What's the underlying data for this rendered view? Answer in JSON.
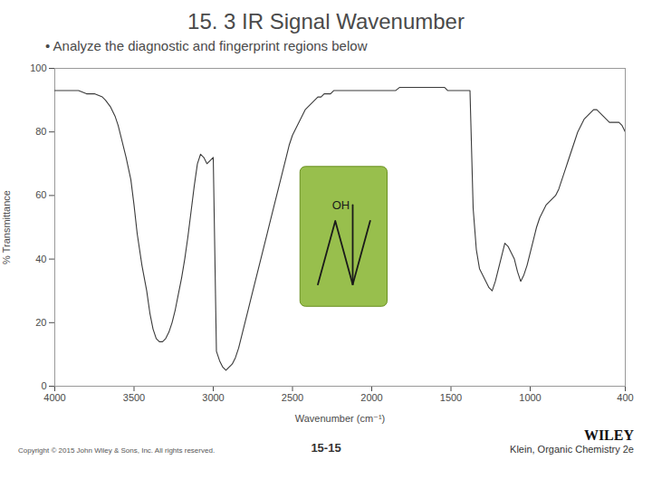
{
  "chart_data": {
    "type": "line",
    "title": "15. 3 IR Signal Wavenumber",
    "subtitle": "• Analyze the diagnostic and fingerprint regions below",
    "xlabel": "Wavenumber (cm⁻¹)",
    "ylabel": "% Transmittance",
    "color": "#3a3a3a",
    "grid": false,
    "annotations": [
      "OH"
    ],
    "footer": [
      "Copyright © 2015 John Wiley & Sons, Inc. All rights reserved.",
      "15-15",
      "WILEY",
      "Klein, Organic Chemistry 2e"
    ],
    "xlim": [
      4000,
      400
    ],
    "ylim": [
      0,
      100
    ],
    "xticks": [
      4000,
      3500,
      3000,
      2500,
      2000,
      1500,
      1000,
      400
    ],
    "yticks": [
      0,
      20,
      40,
      60,
      80,
      100
    ],
    "x": [
      4000,
      3950,
      3900,
      3850,
      3800,
      3750,
      3700,
      3680,
      3650,
      3620,
      3600,
      3580,
      3550,
      3520,
      3500,
      3480,
      3450,
      3420,
      3400,
      3380,
      3360,
      3340,
      3320,
      3300,
      3280,
      3260,
      3240,
      3220,
      3200,
      3180,
      3160,
      3140,
      3120,
      3100,
      3080,
      3060,
      3040,
      3020,
      3000,
      2980,
      2960,
      2940,
      2920,
      2900,
      2880,
      2860,
      2840,
      2820,
      2800,
      2780,
      2760,
      2740,
      2720,
      2700,
      2680,
      2660,
      2640,
      2620,
      2600,
      2580,
      2560,
      2540,
      2520,
      2500,
      2480,
      2460,
      2440,
      2420,
      2400,
      2380,
      2360,
      2340,
      2320,
      2300,
      2280,
      2260,
      2240,
      2220,
      2200,
      2150,
      2100,
      2050,
      2000,
      1975,
      1950,
      1925,
      1900,
      1875,
      1850,
      1825,
      1800,
      1775,
      1750,
      1725,
      1700,
      1675,
      1650,
      1625,
      1600,
      1580,
      1560,
      1540,
      1520,
      1500,
      1480,
      1460,
      1440,
      1420,
      1400,
      1380,
      1360,
      1340,
      1320,
      1300,
      1280,
      1260,
      1240,
      1220,
      1200,
      1180,
      1160,
      1140,
      1120,
      1100,
      1080,
      1060,
      1040,
      1020,
      1000,
      980,
      960,
      940,
      920,
      900,
      880,
      860,
      840,
      820,
      800,
      780,
      760,
      740,
      720,
      700,
      680,
      660,
      640,
      620,
      600,
      580,
      560,
      540,
      520,
      500,
      480,
      460,
      440,
      420,
      400
    ],
    "values": [
      93,
      93,
      93,
      93,
      92,
      92,
      91,
      90,
      88,
      85,
      82,
      78,
      72,
      65,
      57,
      48,
      38,
      30,
      23,
      18,
      15,
      14,
      14,
      15,
      17,
      20,
      24,
      29,
      34,
      40,
      47,
      55,
      63,
      70,
      73,
      72,
      70,
      71,
      72,
      11,
      8,
      6,
      5,
      6,
      7,
      9,
      12,
      16,
      20,
      24,
      28,
      32,
      36,
      40,
      44,
      48,
      52,
      56,
      60,
      64,
      68,
      72,
      76,
      79,
      81,
      83,
      85,
      87,
      88,
      89,
      90,
      91,
      91,
      92,
      92,
      92,
      93,
      93,
      93,
      93,
      93,
      93,
      93,
      93,
      93,
      93,
      93,
      93,
      93,
      94,
      94,
      94,
      94,
      94,
      94,
      94,
      94,
      94,
      94,
      94,
      94,
      94,
      93,
      93,
      93,
      93,
      93,
      93,
      93,
      93,
      56,
      43,
      37,
      35,
      33,
      31,
      30,
      33,
      37,
      41,
      45,
      44,
      42,
      40,
      36,
      33,
      35,
      38,
      42,
      46,
      50,
      53,
      55,
      57,
      58,
      59,
      60,
      62,
      65,
      68,
      71,
      74,
      77,
      80,
      82,
      84,
      85,
      86,
      87,
      87,
      86,
      85,
      84,
      83,
      83,
      83,
      83,
      82,
      80
    ]
  }
}
